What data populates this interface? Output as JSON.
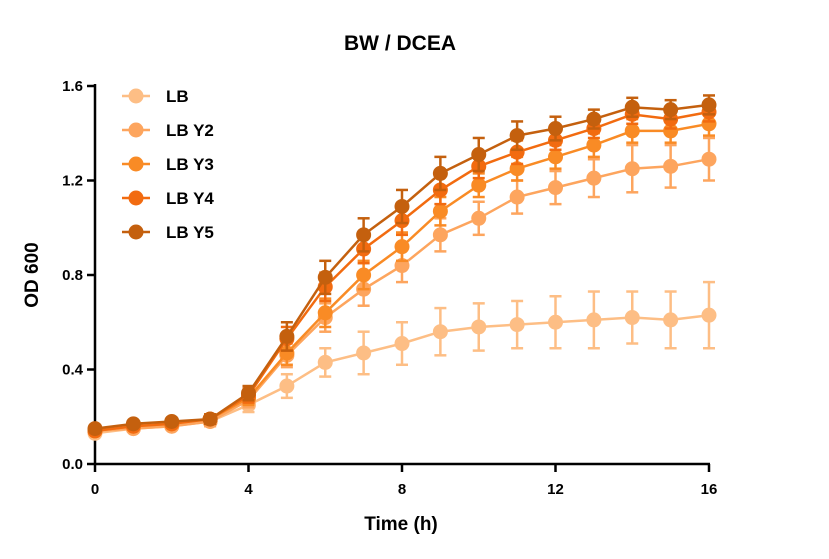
{
  "chart_data": {
    "type": "line",
    "title": "BW / DCEA",
    "xlabel": "Time (h)",
    "ylabel": "OD 600",
    "xlim": [
      0,
      16
    ],
    "ylim": [
      0,
      1.6
    ],
    "xticks": [
      0,
      4,
      8,
      12,
      16
    ],
    "yticks": [
      0.0,
      0.4,
      0.8,
      1.2,
      1.6
    ],
    "xtick_labels": [
      "0",
      "4",
      "8",
      "12",
      "16"
    ],
    "ytick_labels": [
      "0.0",
      "0.4",
      "0.8",
      "1.2",
      "1.6"
    ],
    "grid": false,
    "legend_position": "top-left",
    "error_bars": true,
    "x": [
      0,
      1,
      2,
      3,
      4,
      5,
      6,
      7,
      8,
      9,
      10,
      11,
      12,
      13,
      14,
      15,
      16
    ],
    "series": [
      {
        "name": "LB",
        "color": "#FDBE85",
        "values": [
          0.13,
          0.15,
          0.16,
          0.18,
          0.25,
          0.33,
          0.43,
          0.47,
          0.51,
          0.56,
          0.58,
          0.59,
          0.6,
          0.61,
          0.62,
          0.61,
          0.63
        ],
        "errors": [
          0.01,
          0.01,
          0.01,
          0.02,
          0.03,
          0.05,
          0.06,
          0.09,
          0.09,
          0.1,
          0.1,
          0.1,
          0.11,
          0.12,
          0.11,
          0.12,
          0.14
        ]
      },
      {
        "name": "LB Y2",
        "color": "#FDA55E",
        "values": [
          0.14,
          0.15,
          0.16,
          0.18,
          0.27,
          0.46,
          0.62,
          0.74,
          0.84,
          0.97,
          1.04,
          1.13,
          1.17,
          1.21,
          1.25,
          1.26,
          1.29
        ],
        "errors": [
          0.01,
          0.01,
          0.01,
          0.02,
          0.03,
          0.05,
          0.06,
          0.07,
          0.07,
          0.07,
          0.07,
          0.07,
          0.07,
          0.08,
          0.1,
          0.09,
          0.09
        ]
      },
      {
        "name": "LB Y3",
        "color": "#F98B25",
        "values": [
          0.14,
          0.16,
          0.17,
          0.19,
          0.28,
          0.47,
          0.64,
          0.8,
          0.92,
          1.07,
          1.18,
          1.25,
          1.3,
          1.35,
          1.41,
          1.41,
          1.44
        ],
        "errors": [
          0.01,
          0.01,
          0.01,
          0.02,
          0.03,
          0.05,
          0.06,
          0.06,
          0.06,
          0.06,
          0.05,
          0.05,
          0.05,
          0.05,
          0.05,
          0.05,
          0.05
        ]
      },
      {
        "name": "LB Y4",
        "color": "#F26B10",
        "values": [
          0.14,
          0.16,
          0.17,
          0.19,
          0.29,
          0.53,
          0.75,
          0.91,
          1.03,
          1.16,
          1.26,
          1.32,
          1.37,
          1.42,
          1.48,
          1.46,
          1.49
        ],
        "errors": [
          0.01,
          0.01,
          0.01,
          0.02,
          0.03,
          0.05,
          0.06,
          0.06,
          0.06,
          0.06,
          0.05,
          0.05,
          0.04,
          0.04,
          0.04,
          0.04,
          0.04
        ]
      },
      {
        "name": "LB Y5",
        "color": "#C4600E",
        "values": [
          0.15,
          0.17,
          0.18,
          0.19,
          0.3,
          0.54,
          0.79,
          0.97,
          1.09,
          1.23,
          1.31,
          1.39,
          1.42,
          1.46,
          1.51,
          1.5,
          1.52
        ],
        "errors": [
          0.01,
          0.01,
          0.01,
          0.02,
          0.03,
          0.06,
          0.07,
          0.07,
          0.07,
          0.07,
          0.07,
          0.06,
          0.05,
          0.04,
          0.04,
          0.04,
          0.04
        ]
      }
    ]
  }
}
